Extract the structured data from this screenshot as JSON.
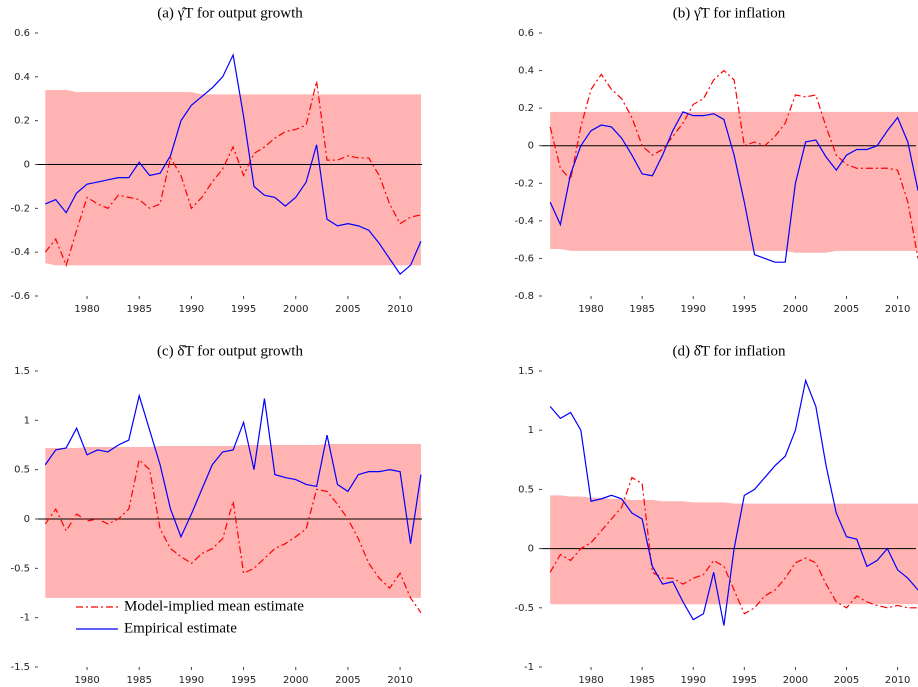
{
  "chart_data": [
    {
      "type": "line",
      "title": "(a) γ̂T for output growth",
      "x": [
        1976,
        1977,
        1978,
        1979,
        1980,
        1981,
        1982,
        1983,
        1984,
        1985,
        1986,
        1987,
        1988,
        1989,
        1990,
        1991,
        1992,
        1993,
        1994,
        1995,
        1996,
        1997,
        1998,
        1999,
        2000,
        2001,
        2002,
        2003,
        2004,
        2005,
        2006,
        2007,
        2008,
        2009,
        2010,
        2011,
        2012
      ],
      "xlim": [
        1975.3,
        2012.1
      ],
      "xticks": [
        1980,
        1985,
        1990,
        1995,
        2000,
        2005,
        2010
      ],
      "ylim": [
        -0.6,
        0.6
      ],
      "yticks": [
        -0.6,
        -0.4,
        -0.2,
        0,
        0.2,
        0.4,
        0.6
      ],
      "hline": 0,
      "band": {
        "color": "#ffb3b3",
        "upper": [
          0.34,
          0.34,
          0.34,
          0.33,
          0.33,
          0.33,
          0.33,
          0.33,
          0.33,
          0.33,
          0.33,
          0.33,
          0.33,
          0.33,
          0.33,
          0.32,
          0.32,
          0.32,
          0.32,
          0.32,
          0.32,
          0.32,
          0.32,
          0.32,
          0.32,
          0.32,
          0.32,
          0.32,
          0.32,
          0.32,
          0.32,
          0.32,
          0.32,
          0.32,
          0.32,
          0.32,
          0.32
        ],
        "lower": [
          -0.45,
          -0.46,
          -0.46,
          -0.46,
          -0.46,
          -0.46,
          -0.46,
          -0.46,
          -0.46,
          -0.46,
          -0.46,
          -0.46,
          -0.46,
          -0.46,
          -0.46,
          -0.46,
          -0.46,
          -0.46,
          -0.46,
          -0.46,
          -0.46,
          -0.46,
          -0.46,
          -0.46,
          -0.46,
          -0.46,
          -0.46,
          -0.46,
          -0.46,
          -0.46,
          -0.46,
          -0.46,
          -0.46,
          -0.46,
          -0.46,
          -0.46,
          -0.46
        ]
      },
      "series": [
        {
          "color": "#ff0000",
          "style": "dashdot",
          "values": [
            -0.4,
            -0.34,
            -0.46,
            -0.3,
            -0.15,
            -0.18,
            -0.2,
            -0.14,
            -0.15,
            -0.16,
            -0.2,
            -0.18,
            0.03,
            -0.05,
            -0.2,
            -0.15,
            -0.08,
            -0.02,
            0.08,
            -0.05,
            0.05,
            0.08,
            0.12,
            0.15,
            0.16,
            0.18,
            0.38,
            0.02,
            0.02,
            0.04,
            0.03,
            0.03,
            -0.05,
            -0.18,
            -0.27,
            -0.24,
            -0.23
          ]
        },
        {
          "color": "#0000ff",
          "style": "solid",
          "values": [
            -0.18,
            -0.16,
            -0.22,
            -0.13,
            -0.09,
            -0.08,
            -0.07,
            -0.06,
            -0.06,
            0.01,
            -0.05,
            -0.04,
            0.04,
            0.2,
            0.27,
            0.31,
            0.35,
            0.4,
            0.5,
            0.22,
            -0.1,
            -0.14,
            -0.15,
            -0.19,
            -0.15,
            -0.08,
            0.09,
            -0.25,
            -0.28,
            -0.27,
            -0.28,
            -0.3,
            -0.36,
            -0.43,
            -0.5,
            -0.46,
            -0.35
          ]
        }
      ]
    },
    {
      "type": "line",
      "title": "(b) γ̂T for inflation",
      "x": [
        1976,
        1977,
        1978,
        1979,
        1980,
        1981,
        1982,
        1983,
        1984,
        1985,
        1986,
        1987,
        1988,
        1989,
        1990,
        1991,
        1992,
        1993,
        1994,
        1995,
        1996,
        1997,
        1998,
        1999,
        2000,
        2001,
        2002,
        2003,
        2004,
        2005,
        2006,
        2007,
        2008,
        2009,
        2010,
        2011,
        2012
      ],
      "xlim": [
        1975.2,
        2011.8
      ],
      "xticks": [
        1980,
        1985,
        1990,
        1995,
        2000,
        2005,
        2010
      ],
      "ylim": [
        -0.8,
        0.6
      ],
      "yticks": [
        -0.8,
        -0.6,
        -0.4,
        -0.2,
        0,
        0.2,
        0.4,
        0.6
      ],
      "hline": 0,
      "band": {
        "color": "#ffb3b3",
        "upper": [
          0.18,
          0.18,
          0.18,
          0.18,
          0.18,
          0.18,
          0.18,
          0.18,
          0.18,
          0.18,
          0.18,
          0.18,
          0.18,
          0.18,
          0.18,
          0.18,
          0.18,
          0.18,
          0.18,
          0.18,
          0.18,
          0.18,
          0.18,
          0.18,
          0.18,
          0.18,
          0.18,
          0.18,
          0.18,
          0.18,
          0.18,
          0.18,
          0.18,
          0.18,
          0.18,
          0.18,
          0.18
        ],
        "lower": [
          -0.55,
          -0.55,
          -0.56,
          -0.56,
          -0.56,
          -0.56,
          -0.56,
          -0.56,
          -0.56,
          -0.56,
          -0.56,
          -0.56,
          -0.56,
          -0.56,
          -0.56,
          -0.56,
          -0.56,
          -0.56,
          -0.56,
          -0.56,
          -0.56,
          -0.56,
          -0.56,
          -0.56,
          -0.57,
          -0.57,
          -0.57,
          -0.57,
          -0.56,
          -0.56,
          -0.56,
          -0.56,
          -0.56,
          -0.56,
          -0.56,
          -0.56,
          -0.56
        ]
      },
      "series": [
        {
          "color": "#ff0000",
          "style": "dashdot",
          "values": [
            0.1,
            -0.12,
            -0.18,
            0.1,
            0.3,
            0.38,
            0.3,
            0.25,
            0.15,
            0.0,
            -0.05,
            -0.02,
            0.05,
            0.12,
            0.22,
            0.25,
            0.35,
            0.4,
            0.35,
            0.0,
            0.02,
            0.0,
            0.05,
            0.12,
            0.27,
            0.26,
            0.27,
            0.1,
            -0.05,
            -0.1,
            -0.12,
            -0.12,
            -0.12,
            -0.12,
            -0.13,
            -0.3,
            -0.6
          ]
        },
        {
          "color": "#0000ff",
          "style": "solid",
          "values": [
            -0.3,
            -0.42,
            -0.15,
            0.0,
            0.08,
            0.11,
            0.1,
            0.04,
            -0.05,
            -0.15,
            -0.16,
            -0.05,
            0.08,
            0.18,
            0.16,
            0.16,
            0.17,
            0.14,
            -0.05,
            -0.3,
            -0.58,
            -0.6,
            -0.62,
            -0.62,
            -0.2,
            0.02,
            0.03,
            -0.06,
            -0.13,
            -0.05,
            -0.02,
            -0.02,
            0.0,
            0.08,
            0.15,
            0.02,
            -0.24
          ]
        }
      ]
    },
    {
      "type": "line",
      "title": "(c) δ̂T for output growth",
      "x": [
        1976,
        1977,
        1978,
        1979,
        1980,
        1981,
        1982,
        1983,
        1984,
        1985,
        1986,
        1987,
        1988,
        1989,
        1990,
        1991,
        1992,
        1993,
        1994,
        1995,
        1996,
        1997,
        1998,
        1999,
        2000,
        2001,
        2002,
        2003,
        2004,
        2005,
        2006,
        2007,
        2008,
        2009,
        2010,
        2011,
        2012
      ],
      "xlim": [
        1975.3,
        2012.1
      ],
      "xticks": [
        1980,
        1985,
        1990,
        1995,
        2000,
        2005,
        2010
      ],
      "ylim": [
        -1.5,
        1.5
      ],
      "yticks": [
        -1.5,
        -1,
        -0.5,
        0,
        0.5,
        1,
        1.5
      ],
      "hline": 0,
      "band": {
        "color": "#ffb3b3",
        "upper": [
          0.72,
          0.72,
          0.72,
          0.72,
          0.73,
          0.73,
          0.73,
          0.73,
          0.73,
          0.73,
          0.73,
          0.74,
          0.74,
          0.74,
          0.74,
          0.74,
          0.74,
          0.74,
          0.74,
          0.75,
          0.75,
          0.75,
          0.75,
          0.75,
          0.75,
          0.75,
          0.75,
          0.76,
          0.76,
          0.76,
          0.76,
          0.76,
          0.76,
          0.76,
          0.76,
          0.76,
          0.76
        ],
        "lower": [
          -0.8,
          -0.8,
          -0.8,
          -0.8,
          -0.8,
          -0.8,
          -0.8,
          -0.8,
          -0.8,
          -0.8,
          -0.8,
          -0.8,
          -0.8,
          -0.8,
          -0.8,
          -0.8,
          -0.8,
          -0.8,
          -0.8,
          -0.8,
          -0.8,
          -0.8,
          -0.8,
          -0.8,
          -0.8,
          -0.8,
          -0.8,
          -0.8,
          -0.8,
          -0.8,
          -0.8,
          -0.8,
          -0.8,
          -0.8,
          -0.8,
          -0.8,
          -0.8
        ]
      },
      "series": [
        {
          "name": "Model-implied mean estimate",
          "color": "#ff0000",
          "style": "dashdot",
          "values": [
            -0.05,
            0.1,
            -0.12,
            0.05,
            -0.02,
            0.0,
            -0.05,
            0.0,
            0.1,
            0.6,
            0.5,
            -0.1,
            -0.3,
            -0.38,
            -0.45,
            -0.35,
            -0.3,
            -0.2,
            0.18,
            -0.55,
            -0.5,
            -0.4,
            -0.3,
            -0.25,
            -0.18,
            -0.1,
            0.3,
            0.28,
            0.15,
            0.0,
            -0.2,
            -0.45,
            -0.6,
            -0.7,
            -0.55,
            -0.8,
            -0.95
          ]
        },
        {
          "name": "Empirical estimate",
          "color": "#0000ff",
          "style": "solid",
          "values": [
            0.55,
            0.7,
            0.72,
            0.92,
            0.65,
            0.7,
            0.68,
            0.75,
            0.8,
            1.25,
            0.9,
            0.55,
            0.1,
            -0.18,
            0.05,
            0.3,
            0.55,
            0.68,
            0.7,
            0.98,
            0.5,
            1.22,
            0.45,
            0.42,
            0.4,
            0.35,
            0.33,
            0.85,
            0.35,
            0.28,
            0.45,
            0.48,
            0.48,
            0.5,
            0.48,
            -0.25,
            0.45
          ]
        }
      ],
      "legend": "lower left"
    },
    {
      "type": "line",
      "title": "(d) δ̂T for inflation",
      "x": [
        1976,
        1977,
        1978,
        1979,
        1980,
        1981,
        1982,
        1983,
        1984,
        1985,
        1986,
        1987,
        1988,
        1989,
        1990,
        1991,
        1992,
        1993,
        1994,
        1995,
        1996,
        1997,
        1998,
        1999,
        2000,
        2001,
        2002,
        2003,
        2004,
        2005,
        2006,
        2007,
        2008,
        2009,
        2010,
        2011,
        2012
      ],
      "xlim": [
        1975.2,
        2011.8
      ],
      "xticks": [
        1980,
        1985,
        1990,
        1995,
        2000,
        2005,
        2010
      ],
      "ylim": [
        -1,
        1.5
      ],
      "yticks": [
        -1,
        -0.5,
        0,
        0.5,
        1,
        1.5
      ],
      "hline": 0,
      "band": {
        "color": "#ffb3b3",
        "upper": [
          0.45,
          0.45,
          0.44,
          0.44,
          0.43,
          0.43,
          0.42,
          0.42,
          0.41,
          0.41,
          0.41,
          0.4,
          0.4,
          0.4,
          0.39,
          0.39,
          0.39,
          0.39,
          0.38,
          0.38,
          0.38,
          0.38,
          0.38,
          0.38,
          0.38,
          0.38,
          0.38,
          0.38,
          0.38,
          0.38,
          0.38,
          0.38,
          0.38,
          0.38,
          0.38,
          0.38,
          0.38
        ],
        "lower": [
          -0.47,
          -0.47,
          -0.47,
          -0.47,
          -0.47,
          -0.47,
          -0.47,
          -0.47,
          -0.47,
          -0.47,
          -0.47,
          -0.47,
          -0.47,
          -0.47,
          -0.47,
          -0.47,
          -0.47,
          -0.47,
          -0.47,
          -0.47,
          -0.47,
          -0.47,
          -0.47,
          -0.47,
          -0.47,
          -0.47,
          -0.47,
          -0.47,
          -0.47,
          -0.47,
          -0.47,
          -0.47,
          -0.47,
          -0.47,
          -0.47,
          -0.47,
          -0.47
        ]
      },
      "series": [
        {
          "color": "#ff0000",
          "style": "dashdot",
          "values": [
            -0.2,
            -0.05,
            -0.1,
            0.0,
            0.05,
            0.15,
            0.25,
            0.35,
            0.6,
            0.55,
            -0.2,
            -0.25,
            -0.25,
            -0.3,
            -0.25,
            -0.22,
            -0.1,
            -0.15,
            -0.35,
            -0.55,
            -0.5,
            -0.4,
            -0.35,
            -0.25,
            -0.12,
            -0.08,
            -0.12,
            -0.3,
            -0.45,
            -0.5,
            -0.4,
            -0.45,
            -0.48,
            -0.5,
            -0.48,
            -0.5,
            -0.5
          ]
        },
        {
          "color": "#0000ff",
          "style": "solid",
          "values": [
            1.2,
            1.1,
            1.15,
            1.0,
            0.4,
            0.42,
            0.45,
            0.42,
            0.3,
            0.25,
            -0.15,
            -0.3,
            -0.28,
            -0.45,
            -0.6,
            -0.55,
            -0.2,
            -0.65,
            0.0,
            0.45,
            0.5,
            0.6,
            0.7,
            0.78,
            1.0,
            1.42,
            1.2,
            0.7,
            0.3,
            0.1,
            0.08,
            -0.15,
            -0.1,
            0.0,
            -0.18,
            -0.25,
            -0.35
          ]
        }
      ]
    }
  ]
}
